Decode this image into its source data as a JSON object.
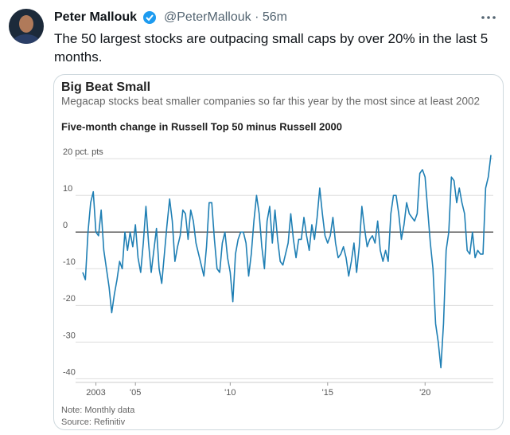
{
  "tweet": {
    "name": "Peter Mallouk",
    "handle": "@PeterMallouk · 56m",
    "text": "The 50 largest stocks are outpacing small caps by over 20% in the last 5 months."
  },
  "chart_data": {
    "type": "line",
    "title": "Big Beat Small",
    "subtitle": "Megacap stocks beat smaller companies so far this year by the most since at least 2002",
    "y_label": "Five-month change in Russell Top 50 minus Russell 2000",
    "notes": [
      "Note: Monthly data",
      "Source: Refinitiv"
    ],
    "color": "#1f7fb4",
    "categories": [
      null,
      null,
      null,
      null,
      null,
      "2003",
      null,
      null,
      null,
      null,
      null,
      null,
      null,
      null,
      null,
      null,
      null,
      null,
      null,
      null,
      "'05",
      null,
      null,
      null,
      null,
      null,
      null,
      null,
      null,
      null,
      null,
      null,
      null,
      null,
      null,
      null,
      null,
      null,
      null,
      null,
      null,
      null,
      null,
      null,
      null,
      null,
      null,
      null,
      null,
      null,
      null,
      null,
      null,
      null,
      null,
      null,
      "'10",
      null,
      null,
      null,
      null,
      null,
      null,
      null,
      null,
      null,
      null,
      null,
      null,
      null,
      null,
      null,
      null,
      null,
      null,
      null,
      null,
      null,
      null,
      null,
      null,
      null,
      null,
      null,
      null,
      null,
      null,
      null,
      null,
      null,
      null,
      null,
      null,
      "'15",
      null,
      null,
      null,
      null,
      null,
      null,
      null,
      null,
      null,
      null,
      null,
      null,
      null,
      null,
      null,
      null,
      null,
      null,
      null,
      null,
      null,
      null,
      null,
      null,
      null,
      null,
      null,
      null,
      null,
      null,
      null,
      null,
      null,
      null,
      null,
      null,
      "'20",
      null,
      null,
      null,
      null,
      null,
      null,
      null,
      null,
      null,
      null,
      null,
      null,
      null,
      null,
      null,
      null,
      null,
      null,
      null,
      null,
      null,
      null,
      null,
      null,
      null
    ],
    "values": [
      -11,
      -13,
      0,
      8,
      11,
      0,
      -1,
      6,
      -5,
      -10,
      -15,
      -22,
      -17,
      -13,
      -8,
      -10,
      0,
      -5,
      0,
      -4,
      2,
      -7,
      -11,
      -3,
      7,
      -3,
      -11,
      -5,
      1,
      -10,
      -14,
      -6,
      2,
      9,
      3,
      -8,
      -4,
      -1,
      6,
      5,
      -2,
      6,
      3,
      -3,
      -6,
      -9,
      -12,
      -4,
      8,
      8,
      -2,
      -10,
      -11,
      -3,
      0,
      -7,
      -11,
      -19,
      -6,
      -2,
      0,
      0,
      -3,
      -12,
      -6,
      3,
      10,
      5,
      -4,
      -10,
      3,
      7,
      -3,
      6,
      -2,
      -8,
      -9,
      -6,
      -3,
      5,
      -2,
      -7,
      -2,
      -2,
      4,
      -1,
      -5,
      2,
      -2,
      4,
      12,
      5,
      -1,
      -3,
      -1,
      4,
      -3,
      -7,
      -6,
      -4,
      -7,
      -12,
      -8,
      -3,
      -11,
      -4,
      7,
      1,
      -4,
      -2,
      -1,
      -3,
      3,
      -5,
      -8,
      -5,
      -8,
      5,
      10,
      10,
      5,
      -2,
      2,
      8,
      5,
      4,
      3,
      5,
      16,
      17,
      15,
      6,
      -3,
      -10,
      -25,
      -30,
      -37,
      -25,
      -5,
      0,
      15,
      14,
      8,
      12,
      8,
      5,
      -5,
      -6,
      0,
      -7,
      -5,
      -6,
      -6,
      12,
      15,
      21
    ],
    "ylim": [
      -41,
      22
    ],
    "yticks": [
      {
        "value": 20,
        "label": "20 pct. pts"
      },
      10,
      0,
      -10,
      -20,
      -30,
      -40
    ],
    "grid": true
  }
}
